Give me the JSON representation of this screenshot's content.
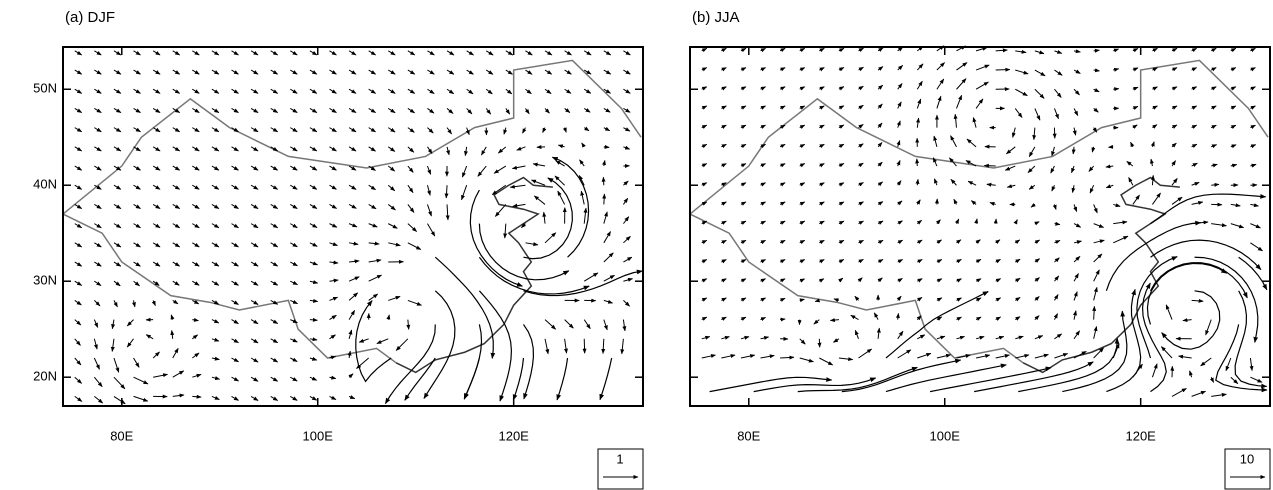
{
  "panels": [
    {
      "title": "(a) DJF",
      "xlim": [
        74,
        133.2
      ],
      "ylim": [
        17,
        54.4
      ],
      "xticks": [
        {
          "value": 80,
          "label": "80E"
        },
        {
          "value": 100,
          "label": "100E"
        },
        {
          "value": 120,
          "label": "120E"
        }
      ],
      "yticks": [
        {
          "value": 20,
          "label": "20N"
        },
        {
          "value": 30,
          "label": "30N"
        },
        {
          "value": 40,
          "label": "40N"
        },
        {
          "value": 50,
          "label": "50N"
        }
      ],
      "reference_vector": 1
    },
    {
      "title": "(b) JJA",
      "xlim": [
        74,
        133.2
      ],
      "ylim": [
        17,
        54.4
      ],
      "xticks": [
        {
          "value": 80,
          "label": "80E"
        },
        {
          "value": 100,
          "label": "100E"
        },
        {
          "value": 120,
          "label": "120E"
        }
      ],
      "yticks": [
        {
          "value": 20,
          "label": "20N"
        },
        {
          "value": 30,
          "label": "30N"
        },
        {
          "value": 40,
          "label": "40N"
        },
        {
          "value": 50,
          "label": "50N"
        }
      ],
      "reference_vector": 10
    }
  ]
}
